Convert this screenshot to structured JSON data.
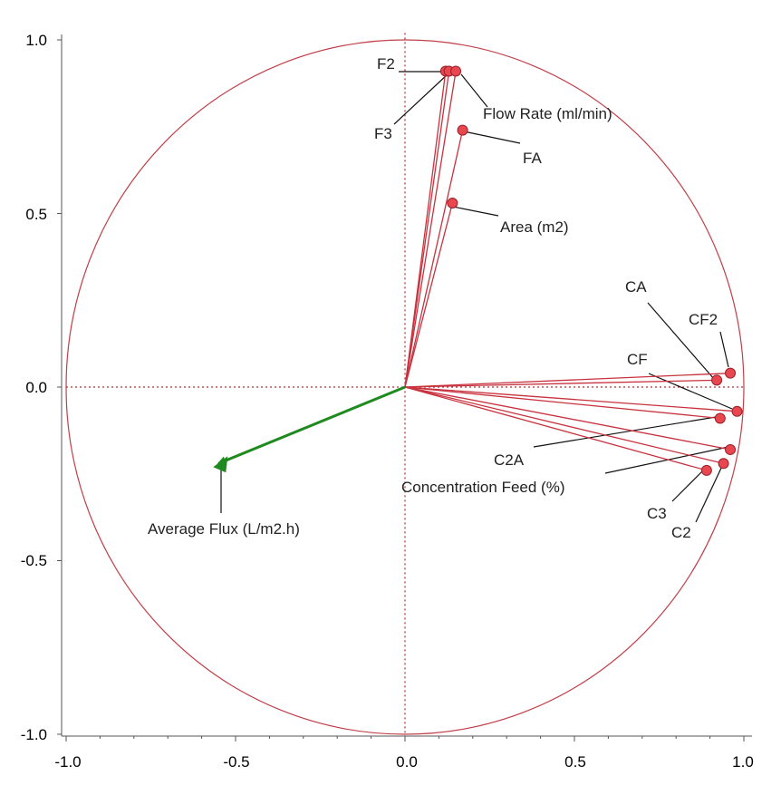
{
  "chart_data": {
    "type": "scatter",
    "subtype": "correlation-loading-plot",
    "title": "",
    "xlabel": "",
    "ylabel": "",
    "xlim": [
      -1.0,
      1.0
    ],
    "ylim": [
      -1.0,
      1.0
    ],
    "x_ticks": [
      "-1.0",
      "-0.5",
      "0.0",
      "0.5",
      "1.0"
    ],
    "y_ticks": [
      "1.0",
      "0.5",
      "0.0",
      "-0.5",
      "-1.0"
    ],
    "x_tick_values": [
      -1.0,
      -0.5,
      0.0,
      0.5,
      1.0
    ],
    "y_tick_values": [
      1.0,
      0.5,
      0.0,
      -0.5,
      -1.0
    ],
    "unit_circle": true,
    "variables": [
      {
        "name": "F2",
        "x": 0.12,
        "y": 0.91,
        "group": "predictor"
      },
      {
        "name": "F3",
        "x": 0.13,
        "y": 0.91,
        "group": "predictor"
      },
      {
        "name": "Flow Rate (ml/min)",
        "x": 0.15,
        "y": 0.91,
        "group": "predictor"
      },
      {
        "name": "FA",
        "x": 0.17,
        "y": 0.74,
        "group": "predictor"
      },
      {
        "name": "Area (m2)",
        "x": 0.14,
        "y": 0.53,
        "group": "predictor"
      },
      {
        "name": "CA",
        "x": 0.92,
        "y": 0.02,
        "group": "predictor"
      },
      {
        "name": "CF2",
        "x": 0.96,
        "y": 0.04,
        "group": "predictor"
      },
      {
        "name": "CF",
        "x": 0.98,
        "y": -0.07,
        "group": "predictor"
      },
      {
        "name": "C2A",
        "x": 0.93,
        "y": -0.09,
        "group": "predictor"
      },
      {
        "name": "Concentration Feed (%)",
        "x": 0.96,
        "y": -0.18,
        "group": "predictor"
      },
      {
        "name": "C3",
        "x": 0.89,
        "y": -0.24,
        "group": "predictor"
      },
      {
        "name": "C2",
        "x": 0.94,
        "y": -0.22,
        "group": "predictor"
      },
      {
        "name": "Average Flux (L/m2.h)",
        "x": -0.55,
        "y": -0.22,
        "group": "response"
      }
    ],
    "colors": {
      "predictor_line": "#c8323e",
      "predictor_marker": "#e8474f",
      "response": "#1f8a1f",
      "circle": "#c0404a",
      "grid": "#b03030",
      "leader": "#111111"
    }
  }
}
